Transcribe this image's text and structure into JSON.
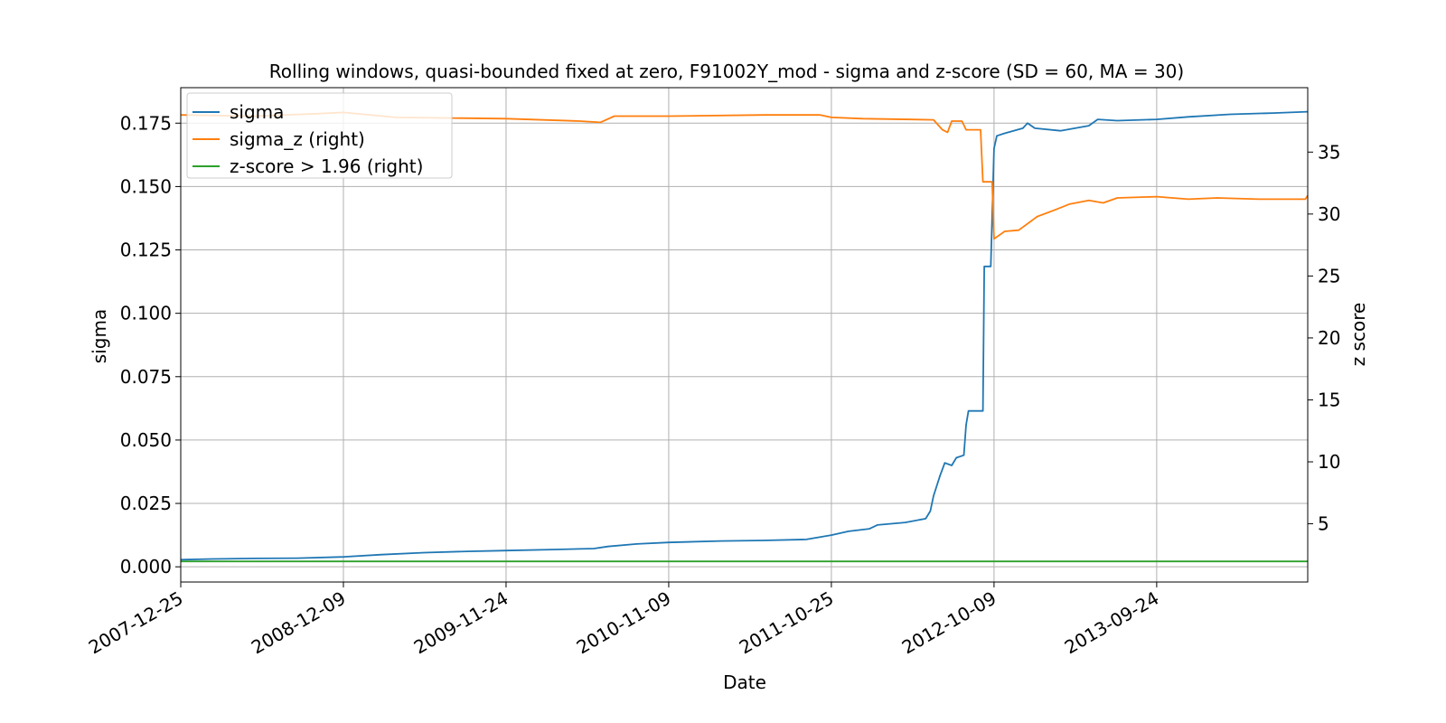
{
  "chart_data": {
    "type": "line",
    "title": "Rolling windows, quasi-bounded fixed at zero, F91002Y_mod - sigma and z-score (SD = 60, MA = 30)",
    "xlabel": "Date",
    "ylabel": "sigma",
    "y2label": "z score",
    "xlim": [
      "2007-12-25",
      "2014-08-15"
    ],
    "x_ticks": [
      "2007-12-25",
      "2008-12-09",
      "2009-11-24",
      "2010-11-09",
      "2011-10-25",
      "2012-10-09",
      "2013-09-24"
    ],
    "ylim": [
      -0.006,
      0.189
    ],
    "y_ticks": [
      "0.000",
      "0.025",
      "0.050",
      "0.075",
      "0.100",
      "0.125",
      "0.150",
      "0.175"
    ],
    "y2lim": [
      0.3,
      40.2
    ],
    "y2_ticks": [
      "5",
      "10",
      "15",
      "20",
      "25",
      "30",
      "35"
    ],
    "grid": true,
    "legend_position": "upper left",
    "series": [
      {
        "name": "sigma",
        "axis": "left",
        "color": "#1f77b4",
        "points": [
          [
            "2007-12-25",
            0.0028
          ],
          [
            "2008-03-01",
            0.0031
          ],
          [
            "2008-06-01",
            0.0033
          ],
          [
            "2008-09-01",
            0.0034
          ],
          [
            "2008-12-09",
            0.0039
          ],
          [
            "2009-03-01",
            0.0048
          ],
          [
            "2009-06-01",
            0.0056
          ],
          [
            "2009-09-01",
            0.0061
          ],
          [
            "2009-11-24",
            0.0064
          ],
          [
            "2010-03-01",
            0.0068
          ],
          [
            "2010-06-01",
            0.0072
          ],
          [
            "2010-07-01",
            0.008
          ],
          [
            "2010-09-01",
            0.009
          ],
          [
            "2010-11-09",
            0.0096
          ],
          [
            "2011-03-01",
            0.0102
          ],
          [
            "2011-06-01",
            0.0104
          ],
          [
            "2011-09-01",
            0.0108
          ],
          [
            "2011-10-25",
            0.0125
          ],
          [
            "2011-12-01",
            0.014
          ],
          [
            "2012-01-15",
            0.015
          ],
          [
            "2012-02-01",
            0.0165
          ],
          [
            "2012-04-01",
            0.0175
          ],
          [
            "2012-05-15",
            0.019
          ],
          [
            "2012-05-25",
            0.022
          ],
          [
            "2012-06-01",
            0.028
          ],
          [
            "2012-06-08",
            0.032
          ],
          [
            "2012-06-15",
            0.036
          ],
          [
            "2012-06-25",
            0.041
          ],
          [
            "2012-07-10",
            0.04
          ],
          [
            "2012-07-20",
            0.043
          ],
          [
            "2012-08-05",
            0.044
          ],
          [
            "2012-08-10",
            0.056
          ],
          [
            "2012-08-15",
            0.0615
          ],
          [
            "2012-09-15",
            0.0615
          ],
          [
            "2012-09-18",
            0.1185
          ],
          [
            "2012-10-02",
            0.1185
          ],
          [
            "2012-10-09",
            0.165
          ],
          [
            "2012-10-15",
            0.17
          ],
          [
            "2012-11-01",
            0.171
          ],
          [
            "2012-12-10",
            0.173
          ],
          [
            "2012-12-20",
            0.175
          ],
          [
            "2013-01-05",
            0.173
          ],
          [
            "2013-03-01",
            0.172
          ],
          [
            "2013-05-01",
            0.174
          ],
          [
            "2013-05-20",
            0.1765
          ],
          [
            "2013-07-01",
            0.176
          ],
          [
            "2013-09-24",
            0.1765
          ],
          [
            "2013-12-01",
            0.1775
          ],
          [
            "2014-03-01",
            0.1785
          ],
          [
            "2014-06-01",
            0.179
          ],
          [
            "2014-08-15",
            0.1795
          ]
        ]
      },
      {
        "name": "sigma_z (right)",
        "axis": "right",
        "color": "#ff7f0e",
        "points": [
          [
            "2007-12-25",
            38.0
          ],
          [
            "2008-06-01",
            37.9
          ],
          [
            "2008-10-15",
            38.1
          ],
          [
            "2008-12-09",
            38.2
          ],
          [
            "2009-04-01",
            37.8
          ],
          [
            "2009-11-24",
            37.7
          ],
          [
            "2010-05-01",
            37.5
          ],
          [
            "2010-06-15",
            37.4
          ],
          [
            "2010-07-15",
            37.9
          ],
          [
            "2010-11-09",
            37.9
          ],
          [
            "2011-06-01",
            38.0
          ],
          [
            "2011-10-01",
            38.0
          ],
          [
            "2011-10-25",
            37.8
          ],
          [
            "2012-01-01",
            37.7
          ],
          [
            "2012-06-01",
            37.6
          ],
          [
            "2012-06-20",
            36.8
          ],
          [
            "2012-07-01",
            36.6
          ],
          [
            "2012-07-10",
            37.5
          ],
          [
            "2012-08-01",
            37.5
          ],
          [
            "2012-08-10",
            36.8
          ],
          [
            "2012-09-10",
            36.8
          ],
          [
            "2012-09-15",
            32.6
          ],
          [
            "2012-10-05",
            32.6
          ],
          [
            "2012-10-09",
            28.0
          ],
          [
            "2012-11-01",
            28.6
          ],
          [
            "2012-12-01",
            28.7
          ],
          [
            "2013-01-10",
            29.8
          ],
          [
            "2013-02-15",
            30.3
          ],
          [
            "2013-03-20",
            30.8
          ],
          [
            "2013-05-01",
            31.1
          ],
          [
            "2013-06-01",
            30.9
          ],
          [
            "2013-07-01",
            31.3
          ],
          [
            "2013-09-24",
            31.4
          ],
          [
            "2013-12-01",
            31.2
          ],
          [
            "2014-02-01",
            31.3
          ],
          [
            "2014-05-01",
            31.2
          ],
          [
            "2014-08-10",
            31.2
          ],
          [
            "2014-08-15",
            31.5
          ]
        ]
      },
      {
        "name": "z-score > 1.96 (right)",
        "axis": "right",
        "color": "#2ca02c",
        "points": [
          [
            "2007-12-25",
            1.96
          ],
          [
            "2014-08-15",
            1.96
          ]
        ]
      }
    ]
  }
}
